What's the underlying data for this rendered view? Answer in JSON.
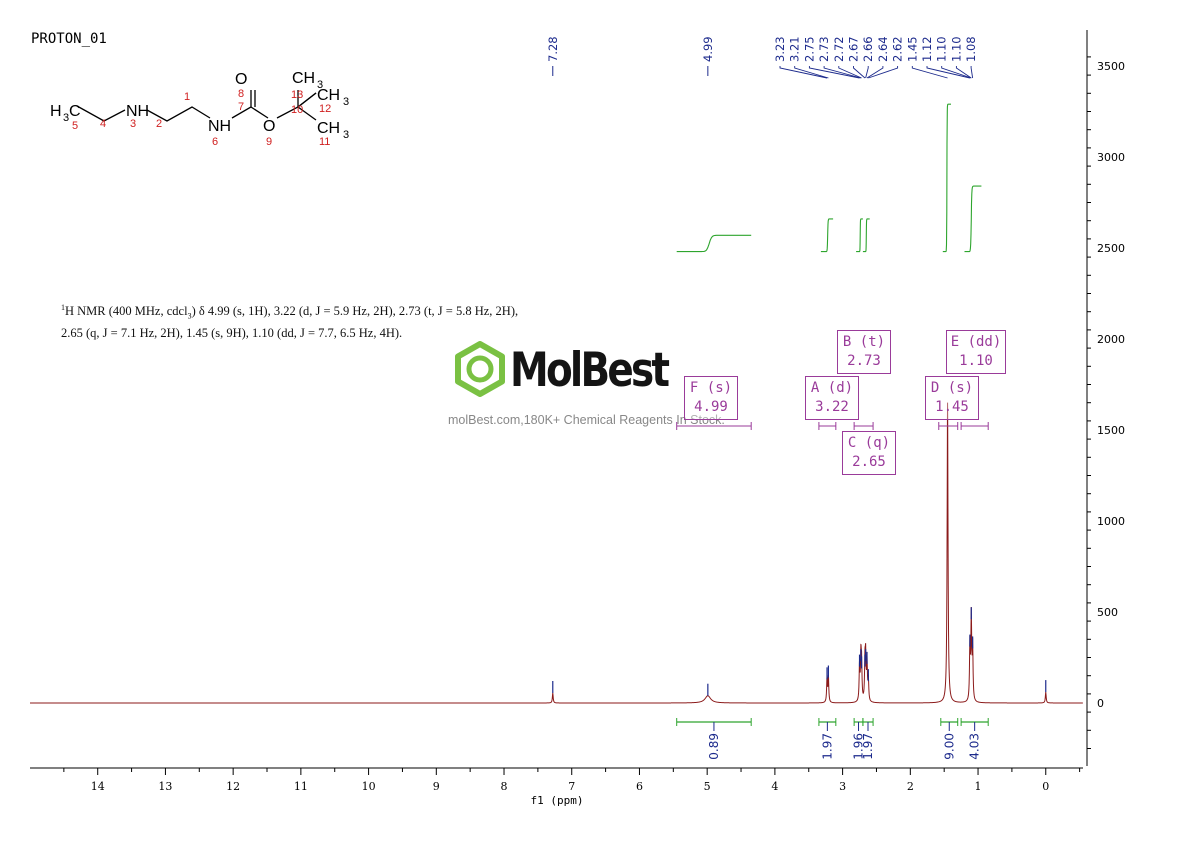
{
  "window_title": "PROTON_01",
  "nmr_description": {
    "line1": "H NMR (400 MHz, cdcl",
    "line1_tail": ") δ 4.99 (s, 1H), 3.22 (d, J = 5.9 Hz, 2H), 2.73 (t, J = 5.8 Hz, 2H),",
    "line2": "2.65 (q, J = 7.1 Hz, 2H), 1.45 (s, 9H), 1.10 (dd, J = 7.7, 6.5 Hz, 4H).",
    "sup": "1",
    "sub": "3"
  },
  "logo": {
    "name": "MolBest",
    "tagline": "molBest.com,180K+ Chemical Reagents In Stock."
  },
  "structure": {
    "labels": [
      "H3C",
      "NH",
      "NH",
      "O",
      "O",
      "CH3",
      "CH3",
      "CH3"
    ],
    "atom_numbers": [
      "1",
      "2",
      "3",
      "4",
      "5",
      "6",
      "7",
      "8",
      "9",
      "10",
      "11",
      "12",
      "13"
    ]
  },
  "multiplets": [
    {
      "id": "F",
      "mult": "s",
      "shift": "4.99"
    },
    {
      "id": "A",
      "mult": "d",
      "shift": "3.22"
    },
    {
      "id": "B",
      "mult": "t",
      "shift": "2.73"
    },
    {
      "id": "C",
      "mult": "q",
      "shift": "2.65"
    },
    {
      "id": "D",
      "mult": "s",
      "shift": "1.45"
    },
    {
      "id": "E",
      "mult": "dd",
      "shift": "1.10"
    }
  ],
  "chart_data": {
    "type": "line",
    "xlabel": "f1 (ppm)",
    "xlim": [
      15,
      -0.55
    ],
    "ylim": [
      -350,
      3700
    ],
    "x_ticks": [
      14,
      13,
      12,
      11,
      10,
      9,
      8,
      7,
      6,
      5,
      4,
      3,
      2,
      1,
      0
    ],
    "y_ticks": [
      0,
      500,
      1000,
      1500,
      2000,
      2500,
      3000,
      3500
    ],
    "peak_labels": [
      "7.28",
      "4.99",
      "3.23",
      "3.21",
      "2.75",
      "2.73",
      "2.72",
      "2.67",
      "2.66",
      "2.64",
      "2.62",
      "1.45",
      "1.12",
      "1.10",
      "1.10",
      "1.08"
    ],
    "peaks": [
      {
        "ppm": 7.28,
        "height": 55
      },
      {
        "ppm": 4.99,
        "height": 40
      },
      {
        "ppm": 3.23,
        "height": 130
      },
      {
        "ppm": 3.21,
        "height": 140
      },
      {
        "ppm": 2.75,
        "height": 200
      },
      {
        "ppm": 2.73,
        "height": 230
      },
      {
        "ppm": 2.72,
        "height": 190
      },
      {
        "ppm": 2.67,
        "height": 200
      },
      {
        "ppm": 2.66,
        "height": 230
      },
      {
        "ppm": 2.64,
        "height": 215
      },
      {
        "ppm": 2.62,
        "height": 120
      },
      {
        "ppm": 1.45,
        "height": 1650
      },
      {
        "ppm": 1.12,
        "height": 310
      },
      {
        "ppm": 1.1,
        "height": 460
      },
      {
        "ppm": 1.08,
        "height": 300
      },
      {
        "ppm": 0.0,
        "height": 60
      }
    ],
    "integrals": [
      {
        "from": 5.45,
        "to": 4.35,
        "value": "0.89"
      },
      {
        "from": 3.35,
        "to": 3.1,
        "value": "1.97"
      },
      {
        "from": 2.83,
        "to": 2.7,
        "value": "1.96"
      },
      {
        "from": 2.7,
        "to": 2.55,
        "value": "1.97"
      },
      {
        "from": 1.55,
        "to": 1.3,
        "value": "9.00"
      },
      {
        "from": 1.25,
        "to": 0.85,
        "value": "4.03"
      }
    ],
    "colors": {
      "spectrum": "#8b1a1a",
      "integral": "#2ea52e",
      "peak_label": "#1c2a8c",
      "annotation": "#9a3b9a"
    }
  }
}
